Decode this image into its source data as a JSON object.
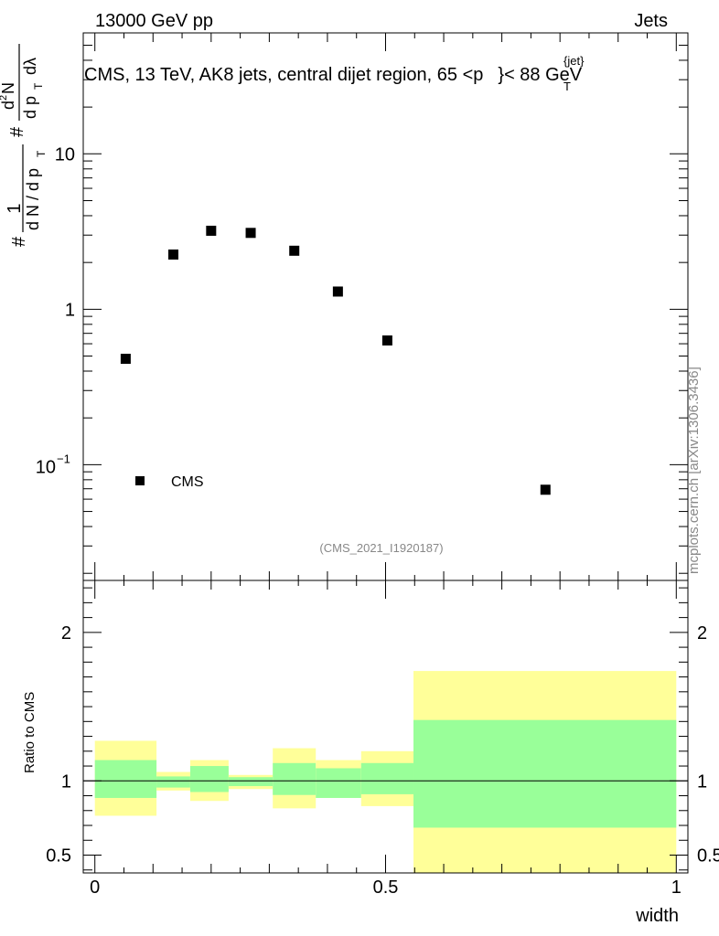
{
  "header": {
    "left": "13000 GeV pp",
    "right": "Jets"
  },
  "chart_data": [
    {
      "type": "scatter",
      "panel": "main",
      "title": "CMS, 13 TeV, AK8 jets, central dijet region, 65 <",
      "title_pt_symbol": "p",
      "title_pt_sub": "T",
      "title_pt_sup": "{jet}",
      "title_tail": "}< 88 GeV",
      "ylabel_parts": {
        "hash": "#",
        "one": "1",
        "dn_dpt": "d N / d p",
        "T": "T",
        "hash2": "#",
        "d2N": "d",
        "two": "2",
        "N": "N",
        "dpt_dlambda": "d p",
        "T2": "T",
        "dlambda": "dλ"
      },
      "yscale": "log",
      "ylim": [
        0.018,
        60
      ],
      "xlim": [
        -0.02,
        1.02
      ],
      "yticks": [
        {
          "v": 10,
          "label": "10"
        },
        {
          "v": 1,
          "label": "1"
        },
        {
          "v": 0.1,
          "base": "10",
          "exp": "−1"
        }
      ],
      "series": [
        {
          "name": "CMS",
          "x": [
            0.053,
            0.135,
            0.2,
            0.268,
            0.343,
            0.418,
            0.503,
            0.775
          ],
          "y": [
            0.48,
            2.25,
            3.2,
            3.1,
            2.38,
            1.3,
            0.63,
            0.069
          ]
        }
      ],
      "legend": {
        "label": "CMS",
        "placement": "bottom-left"
      },
      "analysis_tag": "(CMS_2021_I1920187)"
    },
    {
      "type": "area",
      "panel": "ratio",
      "ylabel": "Ratio to CMS",
      "xlabel": "width",
      "ylim": [
        0.38,
        2.35
      ],
      "xlim": [
        -0.02,
        1.02
      ],
      "xticks": [
        {
          "v": 0,
          "label": "0"
        },
        {
          "v": 0.5,
          "label": "0.5"
        },
        {
          "v": 1,
          "label": "1"
        }
      ],
      "yticks": [
        {
          "v": 2,
          "label": "2"
        },
        {
          "v": 1,
          "label": "1"
        },
        {
          "v": 0.5,
          "label": "0.5"
        }
      ],
      "reference_line": 1,
      "bins": [
        {
          "x0": 0.0,
          "x1": 0.106,
          "stat_lo": 0.885,
          "stat_hi": 1.14,
          "tot_lo": 0.765,
          "tot_hi": 1.27
        },
        {
          "x0": 0.106,
          "x1": 0.164,
          "stat_lo": 0.955,
          "stat_hi": 1.03,
          "tot_lo": 0.935,
          "tot_hi": 1.06
        },
        {
          "x0": 0.164,
          "x1": 0.23,
          "stat_lo": 0.925,
          "stat_hi": 1.1,
          "tot_lo": 0.865,
          "tot_hi": 1.14
        },
        {
          "x0": 0.23,
          "x1": 0.306,
          "stat_lo": 0.965,
          "stat_hi": 1.025,
          "tot_lo": 0.945,
          "tot_hi": 1.04
        },
        {
          "x0": 0.306,
          "x1": 0.38,
          "stat_lo": 0.905,
          "stat_hi": 1.12,
          "tot_lo": 0.815,
          "tot_hi": 1.22
        },
        {
          "x0": 0.38,
          "x1": 0.458,
          "stat_lo": 0.885,
          "stat_hi": 1.085,
          "tot_lo": 0.885,
          "tot_hi": 1.14
        },
        {
          "x0": 0.458,
          "x1": 0.548,
          "stat_lo": 0.91,
          "stat_hi": 1.12,
          "tot_lo": 0.83,
          "tot_hi": 1.2
        },
        {
          "x0": 0.548,
          "x1": 1.0,
          "stat_lo": 0.685,
          "stat_hi": 1.41,
          "tot_lo": 0.35,
          "tot_hi": 1.74
        }
      ],
      "colors": {
        "stat": "#99ff99",
        "total": "#ffff99"
      }
    }
  ],
  "watermark": "mcplots.cern.ch [arXiv:1306.3436]"
}
